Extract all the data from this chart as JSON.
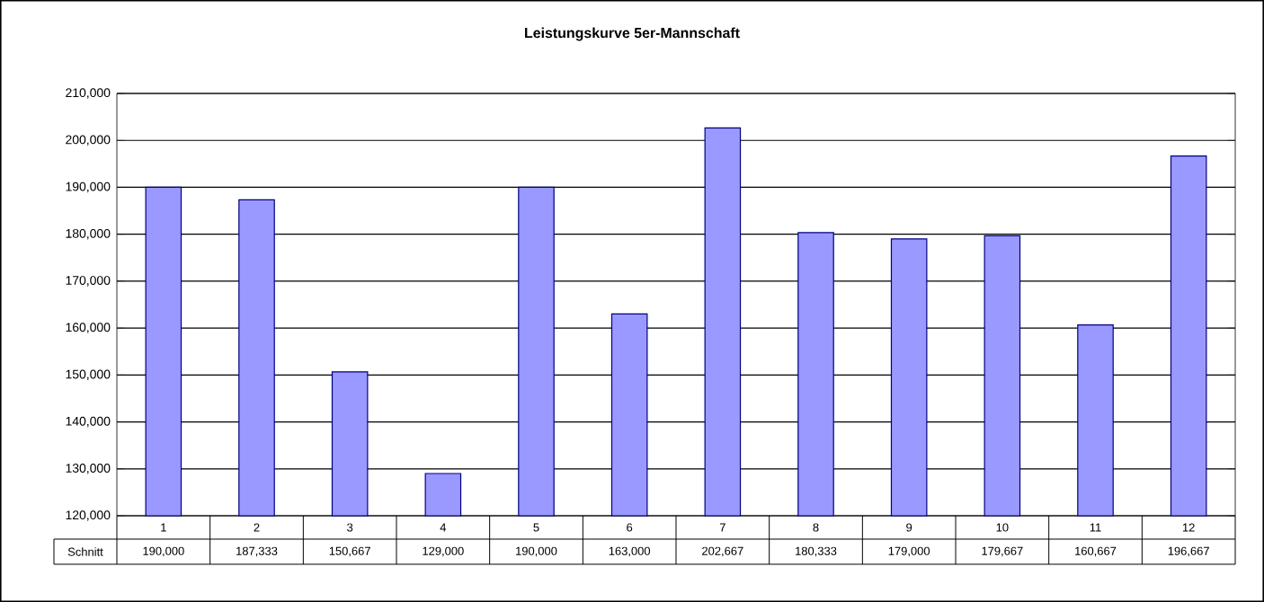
{
  "chart_data": {
    "type": "bar",
    "title": "Leistungskurve 5er-Mannschaft",
    "categories": [
      "1",
      "2",
      "3",
      "4",
      "5",
      "6",
      "7",
      "8",
      "9",
      "10",
      "11",
      "12"
    ],
    "series": [
      {
        "name": "Schnitt",
        "color": "#9999ff",
        "values": [
          190000,
          187333,
          150667,
          129000,
          190000,
          163000,
          202667,
          180333,
          179000,
          179667,
          160667,
          196667
        ],
        "value_labels": [
          "190,000",
          "187,333",
          "150,667",
          "129,000",
          "190,000",
          "163,000",
          "202,667",
          "180,333",
          "179,000",
          "179,667",
          "160,667",
          "196,667"
        ]
      }
    ],
    "ylim": [
      120000,
      210000
    ],
    "yticks": [
      {
        "value": 120000,
        "label": "120,000"
      },
      {
        "value": 130000,
        "label": "130,000"
      },
      {
        "value": 140000,
        "label": "140,000"
      },
      {
        "value": 150000,
        "label": "150,000"
      },
      {
        "value": 160000,
        "label": "160,000"
      },
      {
        "value": 170000,
        "label": "170,000"
      },
      {
        "value": 180000,
        "label": "180,000"
      },
      {
        "value": 190000,
        "label": "190,000"
      },
      {
        "value": 200000,
        "label": "200,000"
      },
      {
        "value": 210000,
        "label": "210,000"
      }
    ],
    "grid": "y"
  }
}
